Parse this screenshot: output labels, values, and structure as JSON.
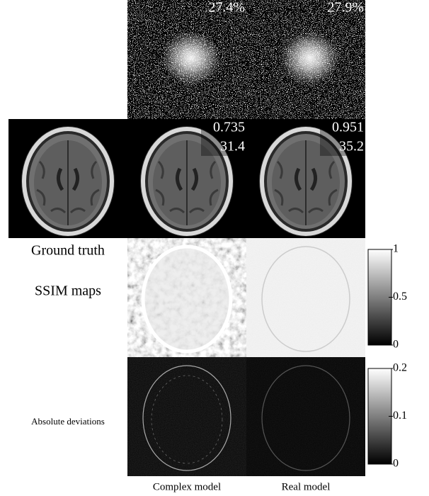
{
  "row_labels": [
    "Ground truth",
    "SSIM maps",
    "Absolute deviations"
  ],
  "columns": [
    {
      "name": "Complex model",
      "sampling_rate": {
        "value": 27.4,
        "label": "27.4%"
      },
      "ssim": 0.735,
      "psnr": 31.4
    },
    {
      "name": "Real model",
      "sampling_rate": {
        "value": 27.9,
        "label": "27.9%"
      },
      "ssim": 0.951,
      "psnr": 35.2
    }
  ],
  "colorbars": [
    {
      "lim": [
        0,
        1
      ],
      "ticks": [
        0,
        0.5,
        1
      ]
    },
    {
      "lim": [
        0,
        0.2
      ],
      "ticks": [
        0,
        0.1,
        0.2
      ]
    }
  ]
}
